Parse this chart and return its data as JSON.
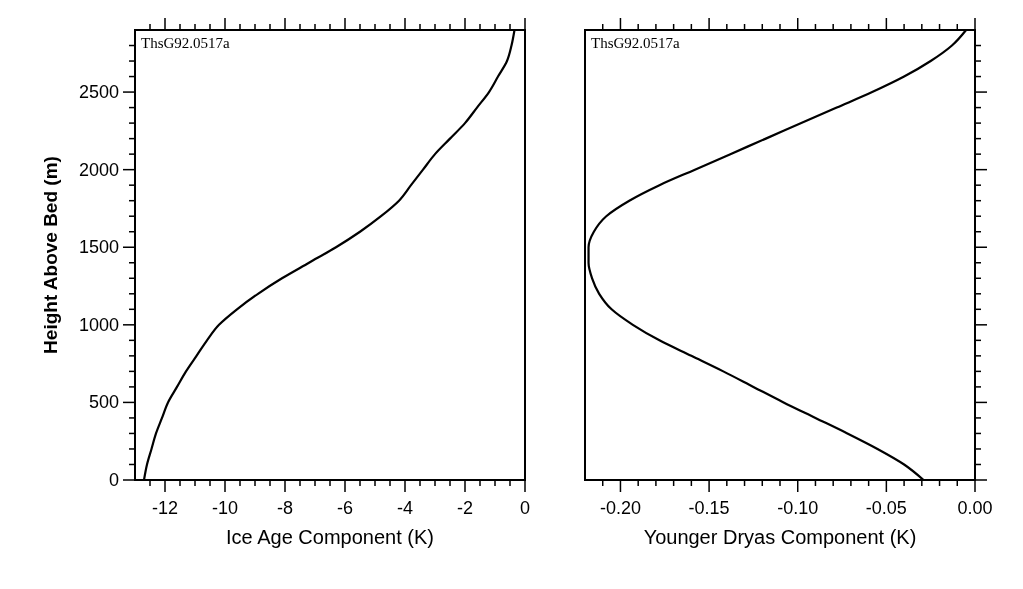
{
  "chart_data": [
    {
      "type": "line",
      "xlabel": "Ice Age Component (K)",
      "ylabel": "Height Above Bed (m)",
      "annotations": [
        "ThsG92.0517a"
      ],
      "xlim": [
        -13,
        0
      ],
      "ylim": [
        0,
        2900
      ],
      "marker": "none",
      "line_style": "solid",
      "grid": false,
      "xticks": [
        {
          "value": -12.5,
          "label": null
        },
        -12,
        {
          "value": -11.5,
          "label": null
        },
        {
          "value": -11,
          "label": null
        },
        {
          "value": -10.5,
          "label": null
        },
        -10,
        {
          "value": -9.5,
          "label": null
        },
        {
          "value": -9,
          "label": null
        },
        {
          "value": -8.5,
          "label": null
        },
        -8,
        {
          "value": -7.5,
          "label": null
        },
        {
          "value": -7,
          "label": null
        },
        {
          "value": -6.5,
          "label": null
        },
        -6,
        {
          "value": -5.5,
          "label": null
        },
        {
          "value": -5,
          "label": null
        },
        {
          "value": -4.5,
          "label": null
        },
        -4,
        {
          "value": -3.5,
          "label": null
        },
        {
          "value": -3,
          "label": null
        },
        {
          "value": -2.5,
          "label": null
        },
        -2,
        {
          "value": -1.5,
          "label": null
        },
        {
          "value": -1,
          "label": null
        },
        {
          "value": -0.5,
          "label": null
        },
        0
      ],
      "yticks": [
        0,
        {
          "value": 100,
          "label": null
        },
        {
          "value": 200,
          "label": null
        },
        {
          "value": 300,
          "label": null
        },
        {
          "value": 400,
          "label": null
        },
        500,
        {
          "value": 600,
          "label": null
        },
        {
          "value": 700,
          "label": null
        },
        {
          "value": 800,
          "label": null
        },
        {
          "value": 900,
          "label": null
        },
        1000,
        {
          "value": 1100,
          "label": null
        },
        {
          "value": 1200,
          "label": null
        },
        {
          "value": 1300,
          "label": null
        },
        {
          "value": 1400,
          "label": null
        },
        1500,
        {
          "value": 1600,
          "label": null
        },
        {
          "value": 1700,
          "label": null
        },
        {
          "value": 1800,
          "label": null
        },
        {
          "value": 1900,
          "label": null
        },
        2000,
        {
          "value": 2100,
          "label": null
        },
        {
          "value": 2200,
          "label": null
        },
        {
          "value": 2300,
          "label": null
        },
        {
          "value": 2400,
          "label": null
        },
        2500,
        {
          "value": 2600,
          "label": null
        },
        {
          "value": 2700,
          "label": null
        },
        {
          "value": 2800,
          "label": null
        }
      ],
      "series": [
        {
          "color": "#000000",
          "x": [
            -12.7,
            -12.6,
            -12.45,
            -12.3,
            -12.1,
            -11.9,
            -11.6,
            -11.3,
            -10.95,
            -10.6,
            -10.2,
            -9.6,
            -8.9,
            -8.1,
            -7.2,
            -6.3,
            -5.5,
            -4.8,
            -4.2,
            -3.8,
            -3.4,
            -3.0,
            -2.5,
            -2.0,
            -1.6,
            -1.2,
            -0.9,
            -0.6,
            -0.45,
            -0.35
          ],
          "values": [
            0,
            100,
            200,
            300,
            400,
            500,
            600,
            700,
            800,
            900,
            1000,
            1100,
            1200,
            1300,
            1400,
            1500,
            1600,
            1700,
            1800,
            1900,
            2000,
            2100,
            2200,
            2300,
            2400,
            2500,
            2600,
            2700,
            2800,
            2900
          ]
        }
      ]
    },
    {
      "type": "line",
      "xlabel": "Younger Dryas Component (K)",
      "annotations": [
        "ThsG92.0517a"
      ],
      "xlim": [
        -0.22,
        0
      ],
      "ylim": [
        0,
        2900
      ],
      "marker": "none",
      "line_style": "solid",
      "grid": false,
      "tick_labels": "x",
      "xticks": [
        {
          "value": -0.21,
          "label": null
        },
        {
          "value": -0.2,
          "label": "-0.20"
        },
        {
          "value": -0.19,
          "label": null
        },
        {
          "value": -0.18,
          "label": null
        },
        {
          "value": -0.17,
          "label": null
        },
        {
          "value": -0.16,
          "label": null
        },
        {
          "value": -0.15,
          "label": "-0.15"
        },
        {
          "value": -0.14,
          "label": null
        },
        {
          "value": -0.13,
          "label": null
        },
        {
          "value": -0.12,
          "label": null
        },
        {
          "value": -0.11,
          "label": null
        },
        {
          "value": -0.1,
          "label": "-0.10"
        },
        {
          "value": -0.09,
          "label": null
        },
        {
          "value": -0.08,
          "label": null
        },
        {
          "value": -0.07,
          "label": null
        },
        {
          "value": -0.06,
          "label": null
        },
        {
          "value": -0.05,
          "label": "-0.05"
        },
        {
          "value": -0.04,
          "label": null
        },
        {
          "value": -0.03,
          "label": null
        },
        {
          "value": -0.02,
          "label": null
        },
        {
          "value": -0.01,
          "label": null
        },
        {
          "value": 0,
          "label": "0.00"
        }
      ],
      "yticks": [
        {
          "value": 0,
          "label": null
        },
        {
          "value": 100,
          "label": null
        },
        {
          "value": 200,
          "label": null
        },
        {
          "value": 300,
          "label": null
        },
        {
          "value": 400,
          "label": null
        },
        {
          "value": 500,
          "label": null
        },
        {
          "value": 600,
          "label": null
        },
        {
          "value": 700,
          "label": null
        },
        {
          "value": 800,
          "label": null
        },
        {
          "value": 900,
          "label": null
        },
        {
          "value": 1000,
          "label": null
        },
        {
          "value": 1100,
          "label": null
        },
        {
          "value": 1200,
          "label": null
        },
        {
          "value": 1300,
          "label": null
        },
        {
          "value": 1400,
          "label": null
        },
        {
          "value": 1500,
          "label": null
        },
        {
          "value": 1600,
          "label": null
        },
        {
          "value": 1700,
          "label": null
        },
        {
          "value": 1800,
          "label": null
        },
        {
          "value": 1900,
          "label": null
        },
        {
          "value": 2000,
          "label": null
        },
        {
          "value": 2100,
          "label": null
        },
        {
          "value": 2200,
          "label": null
        },
        {
          "value": 2300,
          "label": null
        },
        {
          "value": 2400,
          "label": null
        },
        {
          "value": 2500,
          "label": null
        },
        {
          "value": 2600,
          "label": null
        },
        {
          "value": 2700,
          "label": null
        },
        {
          "value": 2800,
          "label": null
        }
      ],
      "series": [
        {
          "color": "#000000",
          "x": [
            -0.029,
            -0.04,
            -0.055,
            -0.072,
            -0.09,
            -0.108,
            -0.125,
            -0.142,
            -0.16,
            -0.178,
            -0.193,
            -0.205,
            -0.212,
            -0.216,
            -0.218,
            -0.218,
            -0.215,
            -0.208,
            -0.195,
            -0.178,
            -0.158,
            -0.138,
            -0.118,
            -0.098,
            -0.078,
            -0.058,
            -0.04,
            -0.025,
            -0.013,
            -0.005
          ],
          "values": [
            0,
            100,
            200,
            300,
            400,
            500,
            600,
            700,
            800,
            900,
            1000,
            1100,
            1200,
            1300,
            1400,
            1500,
            1600,
            1700,
            1800,
            1900,
            2000,
            2100,
            2200,
            2300,
            2400,
            2500,
            2600,
            2700,
            2800,
            2900
          ]
        }
      ]
    }
  ]
}
